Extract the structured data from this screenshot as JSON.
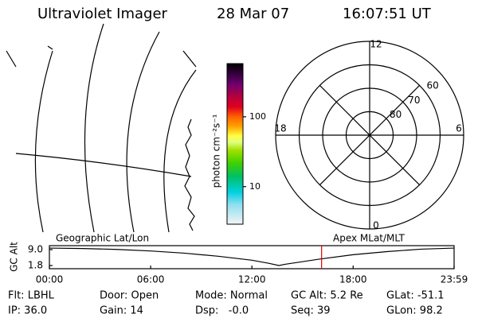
{
  "header": {
    "title": "Ultraviolet Imager",
    "date": "28 Mar 07",
    "time": "16:07:51 UT"
  },
  "colorbar": {
    "label": "photon cm⁻²s⁻¹",
    "scale": "log",
    "lim": [
      2.9,
      577
    ],
    "ticks": [
      10,
      100
    ]
  },
  "polar": {
    "lat_lim": [
      90,
      50
    ],
    "lat_ticks": [
      80,
      70,
      60
    ],
    "mlt_ticks": [
      12,
      18,
      6,
      0
    ]
  },
  "timeline": {
    "left_title": "Geographic Lat/Lon",
    "right_title": "Apex MLat/MLT",
    "ylabel": "GC Alt",
    "ylim": [
      0.36,
      10.8
    ],
    "yticks": [
      {
        "value": 9,
        "label": "9.0"
      },
      {
        "value": 1.8,
        "label": "1.8"
      }
    ],
    "xlim": [
      0,
      23.983
    ],
    "xticks": [
      {
        "value": 0,
        "label": "00:00"
      },
      {
        "value": 6,
        "label": "06:00"
      },
      {
        "value": 12,
        "label": "12:00"
      },
      {
        "value": 18,
        "label": "18:00"
      },
      {
        "value": 23.983,
        "label": "23:59"
      }
    ],
    "x": [
      0,
      2,
      4,
      6,
      8,
      10,
      12,
      13,
      13.6,
      14,
      16,
      18,
      20,
      22,
      23.983
    ],
    "values": [
      9.7,
      9.5,
      9.1,
      8.4,
      7.4,
      6.0,
      4.2,
      2.8,
      1.8,
      2.4,
      4.7,
      6.7,
      8.1,
      9.2,
      9.7
    ],
    "marker": 16.131
  },
  "info": {
    "rows": [
      [
        "Flt: LBHL",
        "Door: Open",
        "Mode: Normal",
        "GC Alt: 5.2 Re",
        "GLat: -51.1"
      ],
      [
        "IP: 36.0",
        "Gain: 14",
        "Dsp:   -0.0",
        "Seq: 39",
        "GLon: 98.2"
      ]
    ]
  }
}
